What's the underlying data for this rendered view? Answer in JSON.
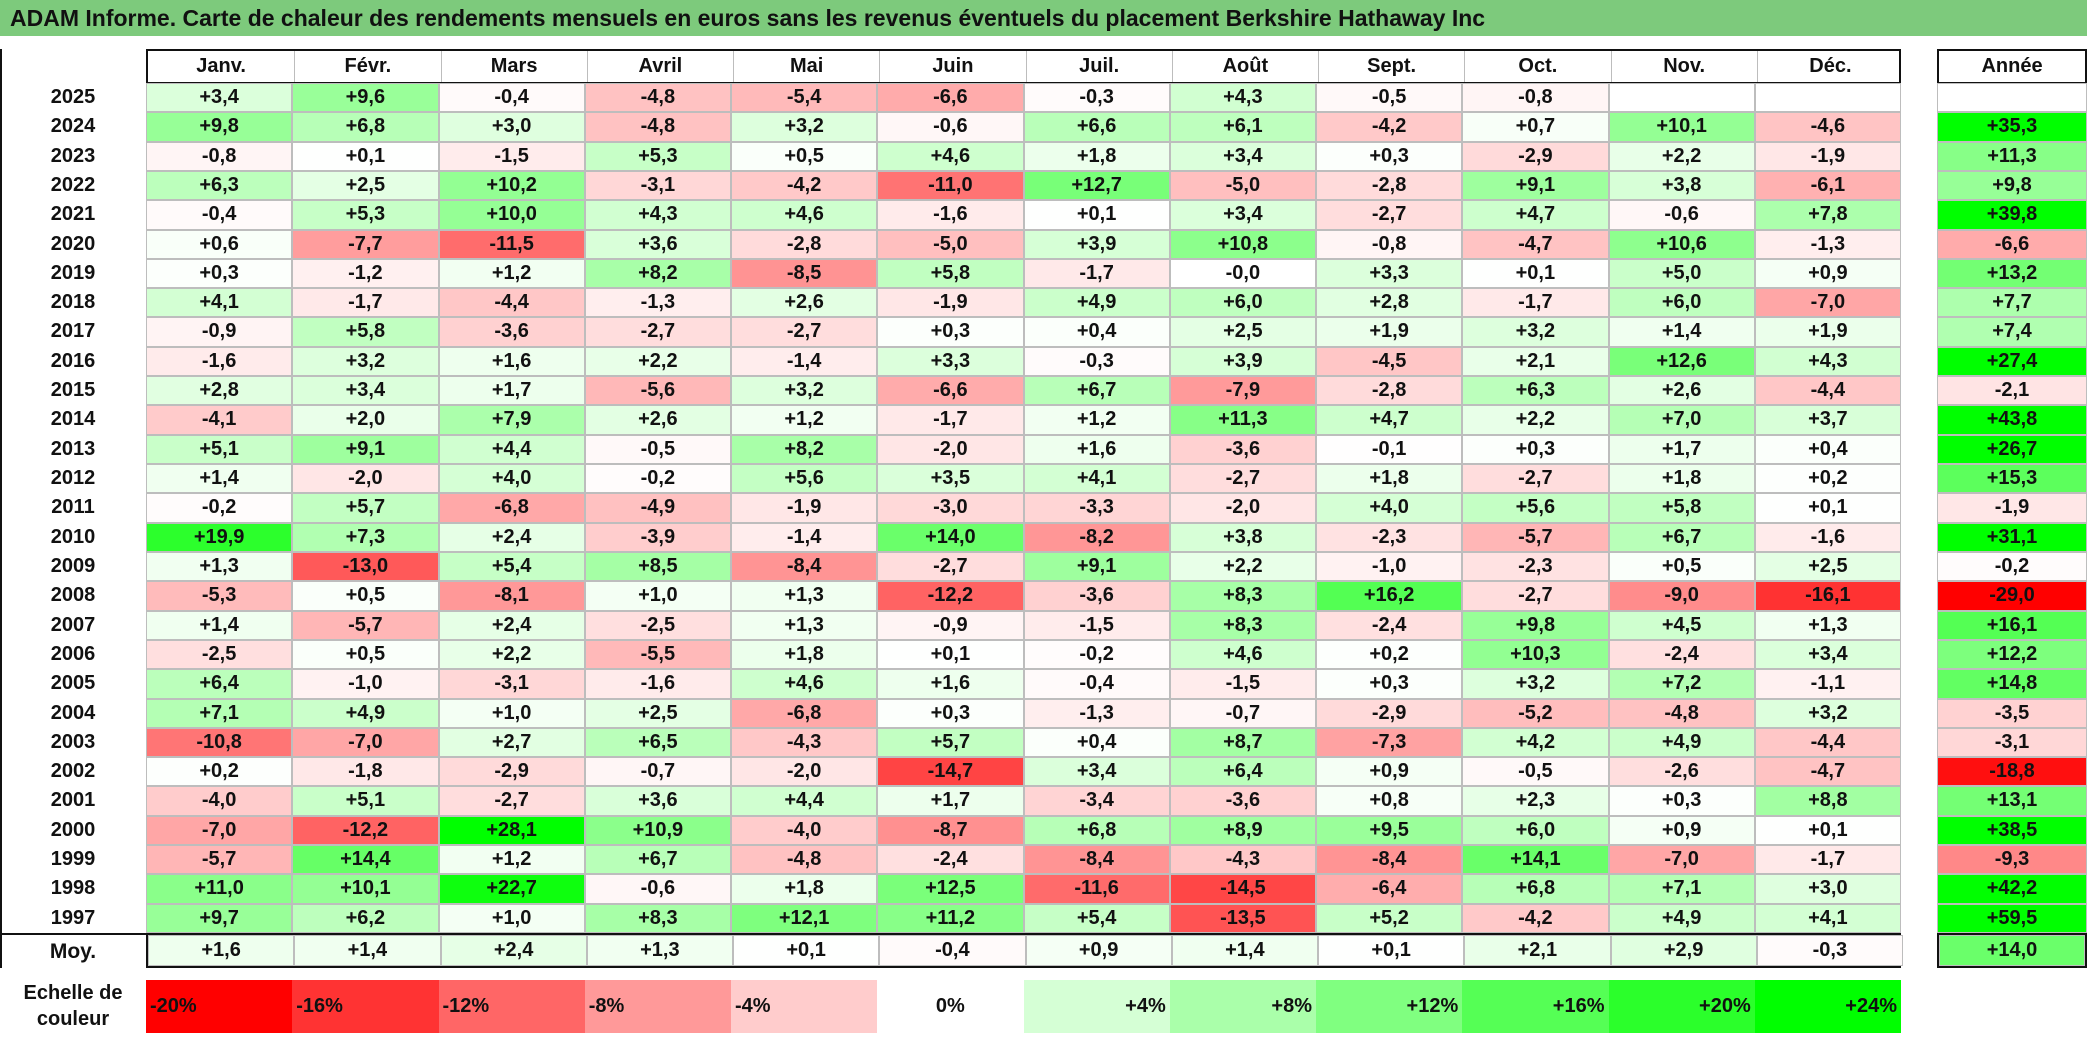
{
  "title": "ADAM Informe. Carte de chaleur des rendements mensuels en euros sans les revenus éventuels du placement Berkshire Hathaway Inc",
  "colors": {
    "title_bg": "#7dca7c",
    "negative_max": "#ff0000",
    "neutral": "#ffffff",
    "positive_max": "#00ff00"
  },
  "labels": {
    "average_row": "Moy.",
    "scale_label_line1": "Echelle de",
    "scale_label_line2": "couleur"
  },
  "chart_data": {
    "type": "heatmap",
    "months": [
      "Janv.",
      "Févr.",
      "Mars",
      "Avril",
      "Mai",
      "Juin",
      "Juil.",
      "Août",
      "Sept.",
      "Oct.",
      "Nov.",
      "Déc."
    ],
    "annual_header": "Année",
    "rows": [
      {
        "year": "2025",
        "months": [
          "+3,4",
          "+9,6",
          "-0,4",
          "-4,8",
          "-5,4",
          "-6,6",
          "-0,3",
          "+4,3",
          "-0,5",
          "-0,8",
          "",
          ""
        ],
        "annual": ""
      },
      {
        "year": "2024",
        "months": [
          "+9,8",
          "+6,8",
          "+3,0",
          "-4,8",
          "+3,2",
          "-0,6",
          "+6,6",
          "+6,1",
          "-4,2",
          "+0,7",
          "+10,1",
          "-4,6"
        ],
        "annual": "+35,3"
      },
      {
        "year": "2023",
        "months": [
          "-0,8",
          "+0,1",
          "-1,5",
          "+5,3",
          "+0,5",
          "+4,6",
          "+1,8",
          "+3,4",
          "+0,3",
          "-2,9",
          "+2,2",
          "-1,9"
        ],
        "annual": "+11,3"
      },
      {
        "year": "2022",
        "months": [
          "+6,3",
          "+2,5",
          "+10,2",
          "-3,1",
          "-4,2",
          "-11,0",
          "+12,7",
          "-5,0",
          "-2,8",
          "+9,1",
          "+3,8",
          "-6,1"
        ],
        "annual": "+9,8"
      },
      {
        "year": "2021",
        "months": [
          "-0,4",
          "+5,3",
          "+10,0",
          "+4,3",
          "+4,6",
          "-1,6",
          "+0,1",
          "+3,4",
          "-2,7",
          "+4,7",
          "-0,6",
          "+7,8"
        ],
        "annual": "+39,8"
      },
      {
        "year": "2020",
        "months": [
          "+0,6",
          "-7,7",
          "-11,5",
          "+3,6",
          "-2,8",
          "-5,0",
          "+3,9",
          "+10,8",
          "-0,8",
          "-4,7",
          "+10,6",
          "-1,3"
        ],
        "annual": "-6,6"
      },
      {
        "year": "2019",
        "months": [
          "+0,3",
          "-1,2",
          "+1,2",
          "+8,2",
          "-8,5",
          "+5,8",
          "-1,7",
          "-0,0",
          "+3,3",
          "+0,1",
          "+5,0",
          "+0,9"
        ],
        "annual": "+13,2"
      },
      {
        "year": "2018",
        "months": [
          "+4,1",
          "-1,7",
          "-4,4",
          "-1,3",
          "+2,6",
          "-1,9",
          "+4,9",
          "+6,0",
          "+2,8",
          "-1,7",
          "+6,0",
          "-7,0"
        ],
        "annual": "+7,7"
      },
      {
        "year": "2017",
        "months": [
          "-0,9",
          "+5,8",
          "-3,6",
          "-2,7",
          "-2,7",
          "+0,3",
          "+0,4",
          "+2,5",
          "+1,9",
          "+3,2",
          "+1,4",
          "+1,9"
        ],
        "annual": "+7,4"
      },
      {
        "year": "2016",
        "months": [
          "-1,6",
          "+3,2",
          "+1,6",
          "+2,2",
          "-1,4",
          "+3,3",
          "-0,3",
          "+3,9",
          "-4,5",
          "+2,1",
          "+12,6",
          "+4,3"
        ],
        "annual": "+27,4"
      },
      {
        "year": "2015",
        "months": [
          "+2,8",
          "+3,4",
          "+1,7",
          "-5,6",
          "+3,2",
          "-6,6",
          "+6,7",
          "-7,9",
          "-2,8",
          "+6,3",
          "+2,6",
          "-4,4"
        ],
        "annual": "-2,1"
      },
      {
        "year": "2014",
        "months": [
          "-4,1",
          "+2,0",
          "+7,9",
          "+2,6",
          "+1,2",
          "-1,7",
          "+1,2",
          "+11,3",
          "+4,7",
          "+2,2",
          "+7,0",
          "+3,7"
        ],
        "annual": "+43,8"
      },
      {
        "year": "2013",
        "months": [
          "+5,1",
          "+9,1",
          "+4,4",
          "-0,5",
          "+8,2",
          "-2,0",
          "+1,6",
          "-3,6",
          "-0,1",
          "+0,3",
          "+1,7",
          "+0,4"
        ],
        "annual": "+26,7"
      },
      {
        "year": "2012",
        "months": [
          "+1,4",
          "-2,0",
          "+4,0",
          "-0,2",
          "+5,6",
          "+3,5",
          "+4,1",
          "-2,7",
          "+1,8",
          "-2,7",
          "+1,8",
          "+0,2"
        ],
        "annual": "+15,3"
      },
      {
        "year": "2011",
        "months": [
          "-0,2",
          "+5,7",
          "-6,8",
          "-4,9",
          "-1,9",
          "-3,0",
          "-3,3",
          "-2,0",
          "+4,0",
          "+5,6",
          "+5,8",
          "+0,1"
        ],
        "annual": "-1,9"
      },
      {
        "year": "2010",
        "months": [
          "+19,9",
          "+7,3",
          "+2,4",
          "-3,9",
          "-1,4",
          "+14,0",
          "-8,2",
          "+3,8",
          "-2,3",
          "-5,7",
          "+6,7",
          "-1,6"
        ],
        "annual": "+31,1"
      },
      {
        "year": "2009",
        "months": [
          "+1,3",
          "-13,0",
          "+5,4",
          "+8,5",
          "-8,4",
          "-2,7",
          "+9,1",
          "+2,2",
          "-1,0",
          "-2,3",
          "+0,5",
          "+2,5"
        ],
        "annual": "-0,2"
      },
      {
        "year": "2008",
        "months": [
          "-5,3",
          "+0,5",
          "-8,1",
          "+1,0",
          "+1,3",
          "-12,2",
          "-3,6",
          "+8,3",
          "+16,2",
          "-2,7",
          "-9,0",
          "-16,1"
        ],
        "annual": "-29,0"
      },
      {
        "year": "2007",
        "months": [
          "+1,4",
          "-5,7",
          "+2,4",
          "-2,5",
          "+1,3",
          "-0,9",
          "-1,5",
          "+8,3",
          "-2,4",
          "+9,8",
          "+4,5",
          "+1,3"
        ],
        "annual": "+16,1"
      },
      {
        "year": "2006",
        "months": [
          "-2,5",
          "+0,5",
          "+2,2",
          "-5,5",
          "+1,8",
          "+0,1",
          "-0,2",
          "+4,6",
          "+0,2",
          "+10,3",
          "-2,4",
          "+3,4"
        ],
        "annual": "+12,2"
      },
      {
        "year": "2005",
        "months": [
          "+6,4",
          "-1,0",
          "-3,1",
          "-1,6",
          "+4,6",
          "+1,6",
          "-0,4",
          "-1,5",
          "+0,3",
          "+3,2",
          "+7,2",
          "-1,1"
        ],
        "annual": "+14,8"
      },
      {
        "year": "2004",
        "months": [
          "+7,1",
          "+4,9",
          "+1,0",
          "+2,5",
          "-6,8",
          "+0,3",
          "-1,3",
          "-0,7",
          "-2,9",
          "-5,2",
          "-4,8",
          "+3,2"
        ],
        "annual": "-3,5"
      },
      {
        "year": "2003",
        "months": [
          "-10,8",
          "-7,0",
          "+2,7",
          "+6,5",
          "-4,3",
          "+5,7",
          "+0,4",
          "+8,7",
          "-7,3",
          "+4,2",
          "+4,9",
          "-4,4"
        ],
        "annual": "-3,1"
      },
      {
        "year": "2002",
        "months": [
          "+0,2",
          "-1,8",
          "-2,9",
          "-0,7",
          "-2,0",
          "-14,7",
          "+3,4",
          "+6,4",
          "+0,9",
          "-0,5",
          "-2,6",
          "-4,7"
        ],
        "annual": "-18,8"
      },
      {
        "year": "2001",
        "months": [
          "-4,0",
          "+5,1",
          "-2,7",
          "+3,6",
          "+4,4",
          "+1,7",
          "-3,4",
          "-3,6",
          "+0,8",
          "+2,3",
          "+0,3",
          "+8,8"
        ],
        "annual": "+13,1"
      },
      {
        "year": "2000",
        "months": [
          "-7,0",
          "-12,2",
          "+28,1",
          "+10,9",
          "-4,0",
          "-8,7",
          "+6,8",
          "+8,9",
          "+9,5",
          "+6,0",
          "+0,9",
          "+0,1"
        ],
        "annual": "+38,5"
      },
      {
        "year": "1999",
        "months": [
          "-5,7",
          "+14,4",
          "+1,2",
          "+6,7",
          "-4,8",
          "-2,4",
          "-8,4",
          "-4,3",
          "-8,4",
          "+14,1",
          "-7,0",
          "-1,7"
        ],
        "annual": "-9,3"
      },
      {
        "year": "1998",
        "months": [
          "+11,0",
          "+10,1",
          "+22,7",
          "-0,6",
          "+1,8",
          "+12,5",
          "-11,6",
          "-14,5",
          "-6,4",
          "+6,8",
          "+7,1",
          "+3,0"
        ],
        "annual": "+42,2"
      },
      {
        "year": "1997",
        "months": [
          "+9,7",
          "+6,2",
          "+1,0",
          "+8,3",
          "+12,1",
          "+11,2",
          "+5,4",
          "-13,5",
          "+5,2",
          "-4,2",
          "+4,9",
          "+4,1"
        ],
        "annual": "+59,5"
      }
    ],
    "average": {
      "months": [
        "+1,6",
        "+1,4",
        "+2,4",
        "+1,3",
        "+0,1",
        "-0,4",
        "+0,9",
        "+1,4",
        "+0,1",
        "+2,1",
        "+2,9",
        "-0,3"
      ],
      "annual": "+14,0"
    },
    "scale": [
      "-20%",
      "-16%",
      "-12%",
      "-8%",
      "-4%",
      "0%",
      "+4%",
      "+8%",
      "+12%",
      "+16%",
      "+20%",
      "+24%"
    ],
    "color_domain": [
      -20,
      0,
      24
    ]
  }
}
